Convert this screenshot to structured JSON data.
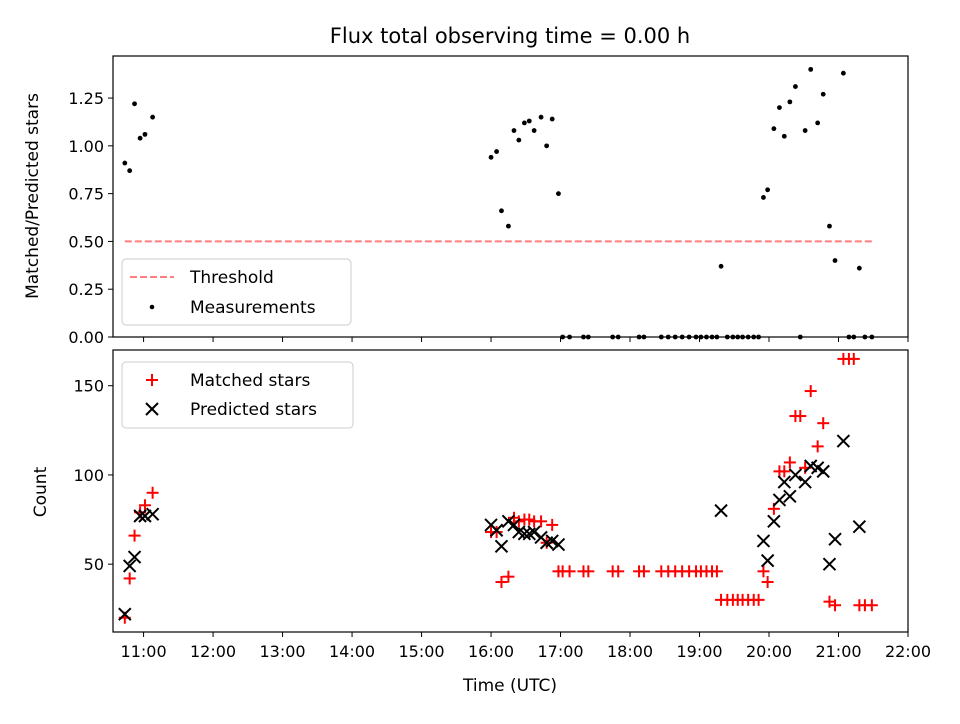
{
  "title": "Flux total observing time = 0.00 h",
  "chart_data": [
    {
      "type": "scatter",
      "ylabel": "Matched/Predicted stars",
      "xlabel": "",
      "xlim": [
        10.56,
        22.0
      ],
      "ylim": [
        0,
        1.47
      ],
      "yticks": [
        0.0,
        0.25,
        0.5,
        0.75,
        1.0,
        1.25
      ],
      "ytick_labels": [
        "0.00",
        "0.25",
        "0.50",
        "0.75",
        "1.00",
        "1.25"
      ],
      "legend_position": "bottom-left",
      "threshold": {
        "name": "Threshold",
        "value": 0.5,
        "x_range": [
          10.73,
          21.48
        ],
        "color": "#ff7f7f"
      },
      "series": [
        {
          "name": "Measurements",
          "marker": "dot",
          "color": "#000000",
          "points": [
            [
              10.73,
              0.91
            ],
            [
              10.8,
              0.87
            ],
            [
              10.87,
              1.22
            ],
            [
              10.95,
              1.04
            ],
            [
              11.02,
              1.06
            ],
            [
              11.13,
              1.15
            ],
            [
              16.0,
              0.94
            ],
            [
              16.08,
              0.97
            ],
            [
              16.15,
              0.66
            ],
            [
              16.25,
              0.58
            ],
            [
              16.33,
              1.08
            ],
            [
              16.4,
              1.03
            ],
            [
              16.48,
              1.12
            ],
            [
              16.55,
              1.13
            ],
            [
              16.62,
              1.08
            ],
            [
              16.72,
              1.15
            ],
            [
              16.8,
              1.0
            ],
            [
              16.88,
              1.14
            ],
            [
              16.97,
              0.75
            ],
            [
              17.03,
              0.0
            ],
            [
              17.13,
              0.0
            ],
            [
              17.33,
              0.0
            ],
            [
              17.4,
              0.0
            ],
            [
              17.75,
              0.0
            ],
            [
              17.83,
              0.0
            ],
            [
              18.13,
              0.0
            ],
            [
              18.2,
              0.0
            ],
            [
              18.45,
              0.0
            ],
            [
              18.55,
              0.0
            ],
            [
              18.65,
              0.0
            ],
            [
              18.75,
              0.0
            ],
            [
              18.85,
              0.0
            ],
            [
              18.95,
              0.0
            ],
            [
              19.02,
              0.0
            ],
            [
              19.1,
              0.0
            ],
            [
              19.18,
              0.0
            ],
            [
              19.25,
              0.0
            ],
            [
              19.31,
              0.37
            ],
            [
              19.4,
              0.0
            ],
            [
              19.48,
              0.0
            ],
            [
              19.55,
              0.0
            ],
            [
              19.62,
              0.0
            ],
            [
              19.7,
              0.0
            ],
            [
              19.78,
              0.0
            ],
            [
              19.85,
              0.0
            ],
            [
              19.92,
              0.73
            ],
            [
              19.98,
              0.77
            ],
            [
              20.07,
              1.09
            ],
            [
              20.15,
              1.2
            ],
            [
              20.22,
              1.05
            ],
            [
              20.3,
              1.23
            ],
            [
              20.38,
              1.31
            ],
            [
              20.45,
              0.0
            ],
            [
              20.52,
              1.08
            ],
            [
              20.6,
              1.4
            ],
            [
              20.7,
              1.12
            ],
            [
              20.78,
              1.27
            ],
            [
              20.87,
              0.58
            ],
            [
              20.95,
              0.4
            ],
            [
              21.07,
              1.38
            ],
            [
              21.15,
              0.0
            ],
            [
              21.22,
              0.0
            ],
            [
              21.3,
              0.36
            ],
            [
              21.38,
              0.0
            ],
            [
              21.48,
              0.0
            ]
          ]
        }
      ]
    },
    {
      "type": "scatter",
      "ylabel": "Count",
      "xlabel": "Time (UTC)",
      "xlim": [
        10.56,
        22.0
      ],
      "ylim": [
        12,
        170
      ],
      "yticks": [
        50,
        100,
        150
      ],
      "ytick_labels": [
        "50",
        "100",
        "150"
      ],
      "xticks": [
        11,
        12,
        13,
        14,
        15,
        16,
        17,
        18,
        19,
        20,
        21,
        22
      ],
      "xtick_labels": [
        "11:00",
        "12:00",
        "13:00",
        "14:00",
        "15:00",
        "16:00",
        "17:00",
        "18:00",
        "19:00",
        "20:00",
        "21:00",
        "22:00"
      ],
      "legend_position": "top-left",
      "series": [
        {
          "name": "Matched stars",
          "marker": "plus",
          "color": "#ff0000",
          "points": [
            [
              10.73,
              20
            ],
            [
              10.8,
              42
            ],
            [
              10.87,
              66
            ],
            [
              10.95,
              79
            ],
            [
              11.02,
              83
            ],
            [
              11.13,
              90
            ],
            [
              16.0,
              68
            ],
            [
              16.08,
              68
            ],
            [
              16.15,
              40
            ],
            [
              16.25,
              43
            ],
            [
              16.33,
              76
            ],
            [
              16.4,
              74
            ],
            [
              16.48,
              75
            ],
            [
              16.55,
              75
            ],
            [
              16.62,
              74
            ],
            [
              16.72,
              74
            ],
            [
              16.8,
              62
            ],
            [
              16.88,
              72
            ],
            [
              16.97,
              46
            ],
            [
              17.03,
              46
            ],
            [
              17.13,
              46
            ],
            [
              17.33,
              46
            ],
            [
              17.4,
              46
            ],
            [
              17.75,
              46
            ],
            [
              17.83,
              46
            ],
            [
              18.13,
              46
            ],
            [
              18.2,
              46
            ],
            [
              18.45,
              46
            ],
            [
              18.55,
              46
            ],
            [
              18.65,
              46
            ],
            [
              18.75,
              46
            ],
            [
              18.85,
              46
            ],
            [
              18.95,
              46
            ],
            [
              19.02,
              46
            ],
            [
              19.1,
              46
            ],
            [
              19.18,
              46
            ],
            [
              19.25,
              46
            ],
            [
              19.31,
              30
            ],
            [
              19.4,
              30
            ],
            [
              19.48,
              30
            ],
            [
              19.55,
              30
            ],
            [
              19.62,
              30
            ],
            [
              19.7,
              30
            ],
            [
              19.78,
              30
            ],
            [
              19.85,
              30
            ],
            [
              19.92,
              46
            ],
            [
              19.98,
              40
            ],
            [
              20.07,
              81
            ],
            [
              20.15,
              102
            ],
            [
              20.22,
              102
            ],
            [
              20.3,
              107
            ],
            [
              20.38,
              133
            ],
            [
              20.45,
              133
            ],
            [
              20.52,
              104
            ],
            [
              20.6,
              147
            ],
            [
              20.7,
              116
            ],
            [
              20.78,
              129
            ],
            [
              20.87,
              29
            ],
            [
              20.95,
              27
            ],
            [
              21.07,
              165
            ],
            [
              21.15,
              165
            ],
            [
              21.22,
              165
            ],
            [
              21.3,
              27
            ],
            [
              21.38,
              27
            ],
            [
              21.48,
              27
            ]
          ]
        },
        {
          "name": "Predicted stars",
          "marker": "x",
          "color": "#000000",
          "points": [
            [
              10.73,
              22
            ],
            [
              10.8,
              49
            ],
            [
              10.87,
              54
            ],
            [
              10.95,
              77
            ],
            [
              11.02,
              77
            ],
            [
              11.13,
              78
            ],
            [
              16.0,
              72
            ],
            [
              16.08,
              69
            ],
            [
              16.15,
              60
            ],
            [
              16.25,
              74
            ],
            [
              16.33,
              72
            ],
            [
              16.4,
              68
            ],
            [
              16.48,
              67
            ],
            [
              16.55,
              67
            ],
            [
              16.62,
              68
            ],
            [
              16.72,
              65
            ],
            [
              16.8,
              62
            ],
            [
              16.88,
              63
            ],
            [
              16.97,
              61
            ],
            [
              19.31,
              80
            ],
            [
              19.92,
              63
            ],
            [
              19.98,
              52
            ],
            [
              20.07,
              74
            ],
            [
              20.15,
              86
            ],
            [
              20.22,
              96
            ],
            [
              20.3,
              88
            ],
            [
              20.38,
              100
            ],
            [
              20.52,
              96
            ],
            [
              20.6,
              105
            ],
            [
              20.7,
              104
            ],
            [
              20.78,
              102
            ],
            [
              20.87,
              50
            ],
            [
              20.95,
              64
            ],
            [
              21.07,
              119
            ],
            [
              21.3,
              71
            ]
          ]
        }
      ]
    }
  ]
}
